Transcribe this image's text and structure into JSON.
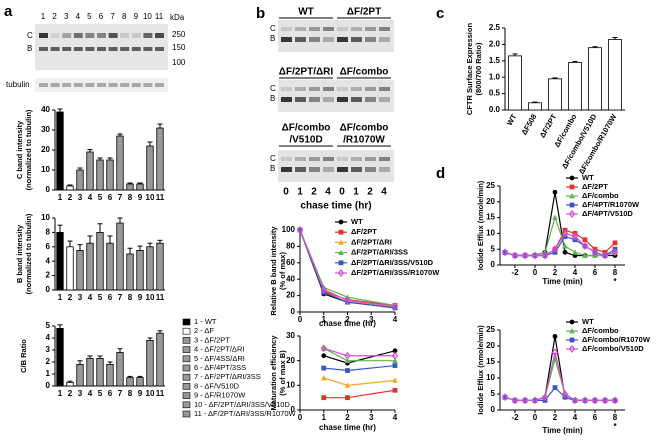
{
  "panel_labels": [
    "a",
    "b",
    "c",
    "d"
  ],
  "blots": {
    "a": {
      "lanes": [
        "1",
        "2",
        "3",
        "4",
        "5",
        "6",
        "7",
        "8",
        "9",
        "10",
        "11"
      ],
      "kda": "kDa",
      "markers": [
        "250",
        "150",
        "100"
      ],
      "bands": [
        "C",
        "B"
      ],
      "loading": "tubulin"
    },
    "b": {
      "rows": [
        [
          [
            "WT"
          ],
          [
            "ΔF/2PT"
          ]
        ],
        [
          [
            "ΔF/2PT/ΔRI"
          ],
          [
            "ΔF/combo"
          ]
        ],
        [
          [
            "ΔF/combo",
            "/V510D"
          ],
          [
            "ΔF/combo",
            "/R1070W"
          ]
        ]
      ],
      "bands": [
        "C",
        "B"
      ],
      "lanes": [
        "0",
        "1",
        "2",
        "4",
        "0",
        "1",
        "2",
        "4"
      ],
      "xlabel": "chase time (hr)"
    }
  },
  "lane_legend": [
    "1 - WT",
    "2 - ΔF",
    "3 - ΔF/2PT",
    "4 - ΔF/2PT/ΔRI",
    "5 - ΔF/4SS/ΔRI",
    "6 - ΔF/4PT/3SS",
    "7 - ΔF/2PT/ΔRI/3SS",
    "8 - ΔF/V510D",
    "9 - ΔF/R1070W",
    "10 - ΔF/2PT/ΔRI/3SS/V510D",
    "11 - ΔF/2PT/ΔRI/3SS/R1070W"
  ],
  "chart_data": [
    {
      "type": "bar",
      "ylabel": [
        "C band intensity",
        "(normalized to tubulin)"
      ],
      "categories": [
        "1",
        "2",
        "3",
        "4",
        "5",
        "6",
        "7",
        "8",
        "9",
        "10",
        "11"
      ],
      "values": [
        39,
        2,
        10,
        19,
        15,
        15,
        27,
        3,
        3,
        22,
        31
      ],
      "errors": [
        1.5,
        0.5,
        1,
        1.2,
        1,
        1,
        1,
        0.5,
        0.5,
        2,
        2
      ],
      "colors": [
        "#000000",
        "#ffffff",
        "#999999",
        "#999999",
        "#999999",
        "#999999",
        "#999999",
        "#999999",
        "#999999",
        "#999999",
        "#999999"
      ],
      "ylim": [
        0,
        40
      ],
      "yticks": [
        0,
        10,
        20,
        30,
        40
      ]
    },
    {
      "type": "bar",
      "ylabel": [
        "B band intensity",
        "(normalized to tubulin)"
      ],
      "categories": [
        "1",
        "2",
        "3",
        "4",
        "5",
        "6",
        "7",
        "8",
        "9",
        "10",
        "11"
      ],
      "values": [
        8,
        6,
        5.5,
        6.5,
        8,
        6.5,
        9.3,
        5,
        5.5,
        6,
        6.5
      ],
      "errors": [
        1,
        0.8,
        0.8,
        1,
        1.2,
        1,
        0.7,
        0.8,
        0.6,
        0.5,
        0.4
      ],
      "colors": [
        "#000000",
        "#ffffff",
        "#999999",
        "#999999",
        "#999999",
        "#999999",
        "#999999",
        "#999999",
        "#999999",
        "#999999",
        "#999999"
      ],
      "ylim": [
        0,
        10
      ],
      "yticks": [
        0,
        2,
        4,
        6,
        8,
        10
      ]
    },
    {
      "type": "bar",
      "ylabel": [
        "C/B Ratio"
      ],
      "categories": [
        "1",
        "2",
        "3",
        "4",
        "5",
        "6",
        "7",
        "8",
        "9",
        "10",
        "11"
      ],
      "values": [
        4.8,
        0.3,
        1.8,
        2.3,
        2.3,
        1.8,
        2.8,
        0.7,
        0.7,
        3.8,
        4.4
      ],
      "errors": [
        0.3,
        0.1,
        0.3,
        0.2,
        0.2,
        0.2,
        0.3,
        0.1,
        0.1,
        0.2,
        0.2
      ],
      "colors": [
        "#000000",
        "#ffffff",
        "#999999",
        "#999999",
        "#999999",
        "#999999",
        "#999999",
        "#999999",
        "#999999",
        "#999999",
        "#999999"
      ],
      "ylim": [
        0,
        5
      ],
      "yticks": [
        0,
        1,
        2,
        3,
        4,
        5
      ]
    },
    {
      "type": "line",
      "ylabel": [
        "Relative B band intensity",
        "(% of max)"
      ],
      "xlabel": "chase time (hr)",
      "x": [
        0,
        1,
        2,
        4
      ],
      "xlim": [
        0,
        4
      ],
      "xticks": [
        0,
        1,
        2,
        3,
        4
      ],
      "ylim": [
        0,
        100
      ],
      "yticks": [
        0,
        20,
        40,
        60,
        80,
        100
      ],
      "legend": "upper right",
      "series": [
        {
          "name": "WT",
          "color": "#000000",
          "marker": "circle",
          "values": [
            100,
            22,
            12,
            5
          ]
        },
        {
          "name": "ΔF/2PT",
          "color": "#e8302a",
          "marker": "square",
          "values": [
            100,
            25,
            15,
            8
          ]
        },
        {
          "name": "ΔF/2PT/ΔRI",
          "color": "#f5a623",
          "marker": "triangle",
          "values": [
            100,
            28,
            14,
            6
          ]
        },
        {
          "name": "ΔF/2PT/ΔRI/3SS",
          "color": "#5cb84a",
          "marker": "triangle",
          "values": [
            100,
            30,
            18,
            8
          ]
        },
        {
          "name": "ΔF/2PT/ΔRI/3SS/V510D",
          "color": "#3a55c8",
          "marker": "square",
          "values": [
            100,
            24,
            12,
            5
          ]
        },
        {
          "name": "ΔF/2PT/ΔRI/3SS/R1070W",
          "color": "#d24fd2",
          "marker": "diamond",
          "values": [
            100,
            27,
            14,
            7
          ]
        }
      ]
    },
    {
      "type": "line",
      "ylabel": [
        "Maturation efficiency",
        "(% of max B)"
      ],
      "xlabel": "chase time (hr)",
      "x": [
        1,
        2,
        4
      ],
      "xlim": [
        0,
        4
      ],
      "xticks": [
        0,
        1,
        2,
        3,
        4
      ],
      "ylim": [
        0,
        30
      ],
      "yticks": [
        0,
        10,
        20,
        30
      ],
      "series": [
        {
          "name": "WT",
          "color": "#000000",
          "marker": "circle",
          "values": [
            22,
            19,
            24
          ]
        },
        {
          "name": "ΔF/2PT",
          "color": "#e8302a",
          "marker": "square",
          "values": [
            5,
            5,
            8
          ]
        },
        {
          "name": "ΔF/2PT/ΔRI",
          "color": "#f5a623",
          "marker": "triangle",
          "values": [
            13,
            10,
            12
          ]
        },
        {
          "name": "ΔF/2PT/ΔRI/3SS",
          "color": "#5cb84a",
          "marker": "triangle",
          "values": [
            25,
            20,
            20
          ]
        },
        {
          "name": "ΔF/2PT/ΔRI/3SS/V510D",
          "color": "#3a55c8",
          "marker": "square",
          "values": [
            17,
            16,
            18
          ]
        },
        {
          "name": "ΔF/2PT/ΔRI/3SS/R1070W",
          "color": "#d24fd2",
          "marker": "diamond",
          "values": [
            25,
            22,
            22
          ]
        }
      ]
    },
    {
      "type": "bar",
      "ylabel": [
        "CFTR Surface Expression",
        "(800/700 Ratio)"
      ],
      "categories": [
        "WT",
        "ΔF508",
        "ΔF/2PT",
        "ΔF/combo",
        "ΔF/combo/V510D",
        "ΔF/combo/R1070W"
      ],
      "values": [
        1.65,
        0.22,
        0.95,
        1.45,
        1.9,
        2.15
      ],
      "errors": [
        0.06,
        0.02,
        0.03,
        0.03,
        0.03,
        0.06
      ],
      "color": "#ffffff",
      "xlabel_rotation": -60,
      "ylim": [
        0,
        2.5
      ],
      "yticks": [
        {
          "value": 0,
          "label": "0.0"
        },
        0.5,
        {
          "value": 1,
          "label": "1.0"
        },
        1.5,
        {
          "value": 2,
          "label": "2.0"
        },
        2.5
      ]
    },
    {
      "type": "line",
      "ylabel": [
        "Iodide Efflux (nmole/min)"
      ],
      "xlabel": "Time (min)",
      "x": [
        -3,
        -2,
        -1,
        0,
        1,
        2,
        3,
        4,
        5,
        6,
        7,
        8
      ],
      "xlim": [
        -3.5,
        9
      ],
      "xticks": [
        -2,
        0,
        2,
        4,
        6,
        8
      ],
      "ylim": [
        0,
        25
      ],
      "yticks": [
        0,
        5,
        10,
        15,
        20,
        25
      ],
      "legend": "upper right",
      "annotations": [
        {
          "text": "*",
          "x": 8
        }
      ],
      "series": [
        {
          "name": "WT",
          "color": "#000000",
          "marker": "circle",
          "values": [
            4,
            3,
            3,
            3,
            4,
            23,
            4,
            3,
            3,
            3,
            3,
            3
          ]
        },
        {
          "name": "ΔF/2PT",
          "color": "#e8302a",
          "marker": "square",
          "values": [
            4,
            3,
            3,
            3,
            3,
            5,
            11,
            10,
            8,
            5,
            4,
            7
          ]
        },
        {
          "name": "ΔF/combo",
          "color": "#5cb84a",
          "marker": "triangle",
          "values": [
            4,
            3,
            3,
            3,
            4,
            15,
            6,
            4,
            3,
            3,
            3,
            4
          ]
        },
        {
          "name": "ΔF/4PT/R1070W",
          "color": "#3a55c8",
          "marker": "square",
          "values": [
            4,
            3,
            3,
            3,
            3,
            4,
            9,
            8,
            6,
            4,
            3,
            5
          ]
        },
        {
          "name": "ΔF/4PT/V510D",
          "color": "#d24fd2",
          "marker": "diamond",
          "values": [
            4,
            3,
            3,
            3,
            3,
            5,
            10,
            9,
            6,
            4,
            3,
            4
          ]
        }
      ]
    },
    {
      "type": "line",
      "ylabel": [
        "Iodide Efflux (nmole/min)"
      ],
      "xlabel": "Time (min)",
      "x": [
        -3,
        -2,
        -1,
        0,
        1,
        2,
        3,
        4,
        5,
        6,
        7,
        8
      ],
      "xlim": [
        -3.5,
        9
      ],
      "xticks": [
        -2,
        0,
        2,
        4,
        6,
        8
      ],
      "ylim": [
        0,
        25
      ],
      "yticks": [
        0,
        5,
        10,
        15,
        20,
        25
      ],
      "legend": "upper right",
      "annotations": [
        {
          "text": "*",
          "x": 8
        }
      ],
      "series": [
        {
          "name": "WT",
          "color": "#000000",
          "marker": "circle",
          "values": [
            4,
            3,
            3,
            3,
            4,
            23,
            4,
            3,
            3,
            3,
            3,
            3
          ]
        },
        {
          "name": "ΔF/combo",
          "color": "#5cb84a",
          "marker": "triangle",
          "values": [
            4,
            3,
            3,
            3,
            4,
            16,
            5,
            3,
            3,
            3,
            3,
            3
          ]
        },
        {
          "name": "ΔF/combo/R1070W",
          "color": "#3a55c8",
          "marker": "square",
          "values": [
            4,
            3,
            3,
            3,
            3,
            7,
            4,
            3,
            3,
            3,
            3,
            3
          ]
        },
        {
          "name": "ΔF/combo/V510D",
          "color": "#d24fd2",
          "marker": "diamond",
          "values": [
            4,
            3,
            3,
            3,
            4,
            18,
            5,
            3,
            3,
            3,
            3,
            3
          ]
        }
      ]
    }
  ]
}
